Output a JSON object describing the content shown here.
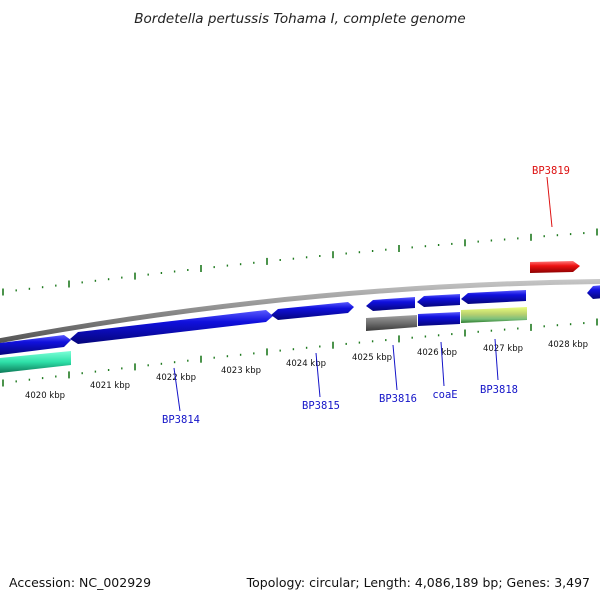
{
  "title": "Bordetella pertussis Tohama I, complete genome",
  "footer": {
    "accession": "Accession: NC_002929",
    "summary": "Topology: circular; Length: 4,086,189 bp; Genes: 3,497"
  },
  "colors": {
    "backbone": "#8a8a8a",
    "tick": "#1f7a1f",
    "cds_forward": "#1010dd",
    "cds_reverse": "#1010dd",
    "teal_feature": "#2de0a8",
    "gray_feature": "#6f6f6f",
    "olive_feature": "#b8d070",
    "red_feature": "#ee1111",
    "label_blue": "#1414c8",
    "label_red": "#dd1111"
  },
  "scale_labels": [
    "4020 kbp",
    "4021 kbp",
    "4022 kbp",
    "4023 kbp",
    "4024 kbp",
    "4025 kbp",
    "4026 kbp",
    "4027 kbp",
    "4028 kbp"
  ],
  "gene_labels": [
    {
      "text": "BP3814",
      "color": "blue"
    },
    {
      "text": "BP3815",
      "color": "blue"
    },
    {
      "text": "BP3816",
      "color": "blue"
    },
    {
      "text": "coaE",
      "color": "blue"
    },
    {
      "text": "BP3818",
      "color": "blue"
    },
    {
      "text": "BP3819",
      "color": "red"
    }
  ]
}
